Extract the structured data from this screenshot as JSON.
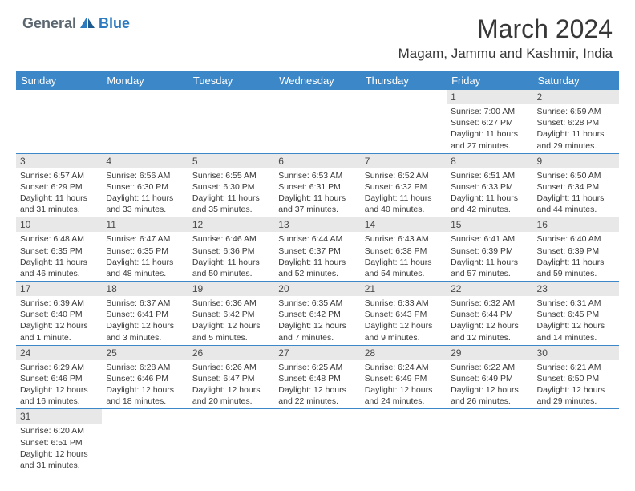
{
  "logo": {
    "part1": "General",
    "part2": "Blue"
  },
  "title": "March 2024",
  "location": "Magam, Jammu and Kashmir, India",
  "colors": {
    "header_bg": "#3b87c8",
    "header_text": "#ffffff",
    "daynum_bg": "#e8e8e8",
    "border": "#3b87c8",
    "logo_gray": "#5d6770",
    "logo_blue": "#2c7ac0",
    "text": "#373737"
  },
  "fonts": {
    "title_size": 32,
    "location_size": 17,
    "dayheader_size": 13,
    "cell_size": 10.5
  },
  "day_headers": [
    "Sunday",
    "Monday",
    "Tuesday",
    "Wednesday",
    "Thursday",
    "Friday",
    "Saturday"
  ],
  "weeks": [
    [
      {
        "empty": true
      },
      {
        "empty": true
      },
      {
        "empty": true
      },
      {
        "empty": true
      },
      {
        "empty": true
      },
      {
        "num": "1",
        "sunrise": "Sunrise: 7:00 AM",
        "sunset": "Sunset: 6:27 PM",
        "daylight": "Daylight: 11 hours and 27 minutes."
      },
      {
        "num": "2",
        "sunrise": "Sunrise: 6:59 AM",
        "sunset": "Sunset: 6:28 PM",
        "daylight": "Daylight: 11 hours and 29 minutes."
      }
    ],
    [
      {
        "num": "3",
        "sunrise": "Sunrise: 6:57 AM",
        "sunset": "Sunset: 6:29 PM",
        "daylight": "Daylight: 11 hours and 31 minutes."
      },
      {
        "num": "4",
        "sunrise": "Sunrise: 6:56 AM",
        "sunset": "Sunset: 6:30 PM",
        "daylight": "Daylight: 11 hours and 33 minutes."
      },
      {
        "num": "5",
        "sunrise": "Sunrise: 6:55 AM",
        "sunset": "Sunset: 6:30 PM",
        "daylight": "Daylight: 11 hours and 35 minutes."
      },
      {
        "num": "6",
        "sunrise": "Sunrise: 6:53 AM",
        "sunset": "Sunset: 6:31 PM",
        "daylight": "Daylight: 11 hours and 37 minutes."
      },
      {
        "num": "7",
        "sunrise": "Sunrise: 6:52 AM",
        "sunset": "Sunset: 6:32 PM",
        "daylight": "Daylight: 11 hours and 40 minutes."
      },
      {
        "num": "8",
        "sunrise": "Sunrise: 6:51 AM",
        "sunset": "Sunset: 6:33 PM",
        "daylight": "Daylight: 11 hours and 42 minutes."
      },
      {
        "num": "9",
        "sunrise": "Sunrise: 6:50 AM",
        "sunset": "Sunset: 6:34 PM",
        "daylight": "Daylight: 11 hours and 44 minutes."
      }
    ],
    [
      {
        "num": "10",
        "sunrise": "Sunrise: 6:48 AM",
        "sunset": "Sunset: 6:35 PM",
        "daylight": "Daylight: 11 hours and 46 minutes."
      },
      {
        "num": "11",
        "sunrise": "Sunrise: 6:47 AM",
        "sunset": "Sunset: 6:35 PM",
        "daylight": "Daylight: 11 hours and 48 minutes."
      },
      {
        "num": "12",
        "sunrise": "Sunrise: 6:46 AM",
        "sunset": "Sunset: 6:36 PM",
        "daylight": "Daylight: 11 hours and 50 minutes."
      },
      {
        "num": "13",
        "sunrise": "Sunrise: 6:44 AM",
        "sunset": "Sunset: 6:37 PM",
        "daylight": "Daylight: 11 hours and 52 minutes."
      },
      {
        "num": "14",
        "sunrise": "Sunrise: 6:43 AM",
        "sunset": "Sunset: 6:38 PM",
        "daylight": "Daylight: 11 hours and 54 minutes."
      },
      {
        "num": "15",
        "sunrise": "Sunrise: 6:41 AM",
        "sunset": "Sunset: 6:39 PM",
        "daylight": "Daylight: 11 hours and 57 minutes."
      },
      {
        "num": "16",
        "sunrise": "Sunrise: 6:40 AM",
        "sunset": "Sunset: 6:39 PM",
        "daylight": "Daylight: 11 hours and 59 minutes."
      }
    ],
    [
      {
        "num": "17",
        "sunrise": "Sunrise: 6:39 AM",
        "sunset": "Sunset: 6:40 PM",
        "daylight": "Daylight: 12 hours and 1 minute."
      },
      {
        "num": "18",
        "sunrise": "Sunrise: 6:37 AM",
        "sunset": "Sunset: 6:41 PM",
        "daylight": "Daylight: 12 hours and 3 minutes."
      },
      {
        "num": "19",
        "sunrise": "Sunrise: 6:36 AM",
        "sunset": "Sunset: 6:42 PM",
        "daylight": "Daylight: 12 hours and 5 minutes."
      },
      {
        "num": "20",
        "sunrise": "Sunrise: 6:35 AM",
        "sunset": "Sunset: 6:42 PM",
        "daylight": "Daylight: 12 hours and 7 minutes."
      },
      {
        "num": "21",
        "sunrise": "Sunrise: 6:33 AM",
        "sunset": "Sunset: 6:43 PM",
        "daylight": "Daylight: 12 hours and 9 minutes."
      },
      {
        "num": "22",
        "sunrise": "Sunrise: 6:32 AM",
        "sunset": "Sunset: 6:44 PM",
        "daylight": "Daylight: 12 hours and 12 minutes."
      },
      {
        "num": "23",
        "sunrise": "Sunrise: 6:31 AM",
        "sunset": "Sunset: 6:45 PM",
        "daylight": "Daylight: 12 hours and 14 minutes."
      }
    ],
    [
      {
        "num": "24",
        "sunrise": "Sunrise: 6:29 AM",
        "sunset": "Sunset: 6:46 PM",
        "daylight": "Daylight: 12 hours and 16 minutes."
      },
      {
        "num": "25",
        "sunrise": "Sunrise: 6:28 AM",
        "sunset": "Sunset: 6:46 PM",
        "daylight": "Daylight: 12 hours and 18 minutes."
      },
      {
        "num": "26",
        "sunrise": "Sunrise: 6:26 AM",
        "sunset": "Sunset: 6:47 PM",
        "daylight": "Daylight: 12 hours and 20 minutes."
      },
      {
        "num": "27",
        "sunrise": "Sunrise: 6:25 AM",
        "sunset": "Sunset: 6:48 PM",
        "daylight": "Daylight: 12 hours and 22 minutes."
      },
      {
        "num": "28",
        "sunrise": "Sunrise: 6:24 AM",
        "sunset": "Sunset: 6:49 PM",
        "daylight": "Daylight: 12 hours and 24 minutes."
      },
      {
        "num": "29",
        "sunrise": "Sunrise: 6:22 AM",
        "sunset": "Sunset: 6:49 PM",
        "daylight": "Daylight: 12 hours and 26 minutes."
      },
      {
        "num": "30",
        "sunrise": "Sunrise: 6:21 AM",
        "sunset": "Sunset: 6:50 PM",
        "daylight": "Daylight: 12 hours and 29 minutes."
      }
    ],
    [
      {
        "num": "31",
        "sunrise": "Sunrise: 6:20 AM",
        "sunset": "Sunset: 6:51 PM",
        "daylight": "Daylight: 12 hours and 31 minutes."
      },
      {
        "empty": true
      },
      {
        "empty": true
      },
      {
        "empty": true
      },
      {
        "empty": true
      },
      {
        "empty": true
      },
      {
        "empty": true
      }
    ]
  ]
}
